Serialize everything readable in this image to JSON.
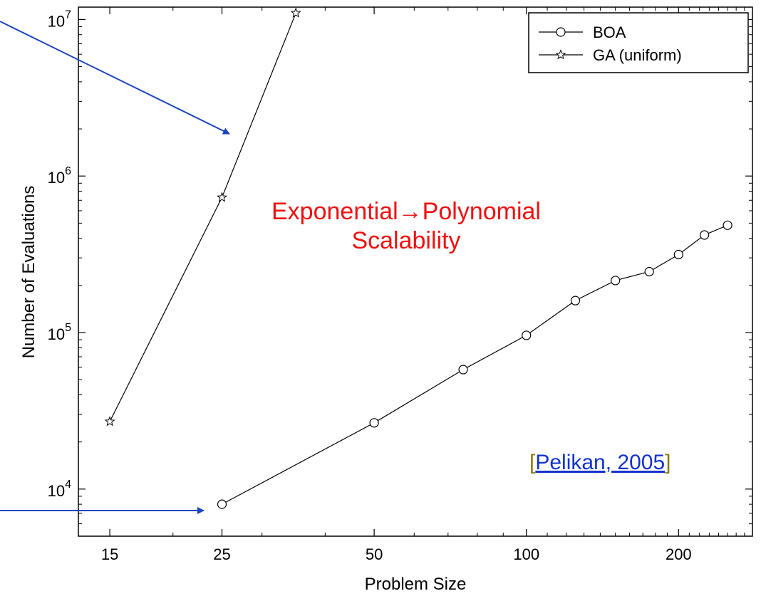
{
  "chart_data": {
    "type": "line",
    "title": "",
    "xlabel": "Problem Size",
    "ylabel": "Number of Evaluations",
    "x_scale": "log",
    "y_scale": "log",
    "xlim": [
      13,
      280
    ],
    "ylim": [
      5000,
      12000000
    ],
    "x_ticks": [
      15,
      25,
      50,
      100,
      200
    ],
    "x_tick_labels": [
      "15",
      "25",
      "50",
      "100",
      "200"
    ],
    "y_ticks": [
      10000,
      100000,
      1000000,
      10000000
    ],
    "y_tick_labels": [
      {
        "base": "10",
        "exp": "4"
      },
      {
        "base": "10",
        "exp": "5"
      },
      {
        "base": "10",
        "exp": "6"
      },
      {
        "base": "10",
        "exp": "7"
      }
    ],
    "legend_position": "top-right",
    "series": [
      {
        "name": "BOA",
        "marker": "circle",
        "color": "#000000",
        "x": [
          25,
          50,
          75,
          100,
          125,
          150,
          175,
          200,
          225,
          250
        ],
        "y": [
          8000,
          26500,
          58000,
          96000,
          160000,
          215000,
          245000,
          315000,
          420000,
          485000
        ]
      },
      {
        "name": "GA (uniform)",
        "marker": "star",
        "color": "#000000",
        "x": [
          15,
          25,
          35
        ],
        "y": [
          27000,
          730000,
          11000000
        ]
      }
    ],
    "annotations": {
      "line1": "Exponential→Polynomial",
      "line2": "Scalability"
    },
    "arrow_color": "#1a44bb"
  },
  "citation": {
    "open": "[",
    "text": "Pelikan, 2005",
    "close": "]"
  }
}
